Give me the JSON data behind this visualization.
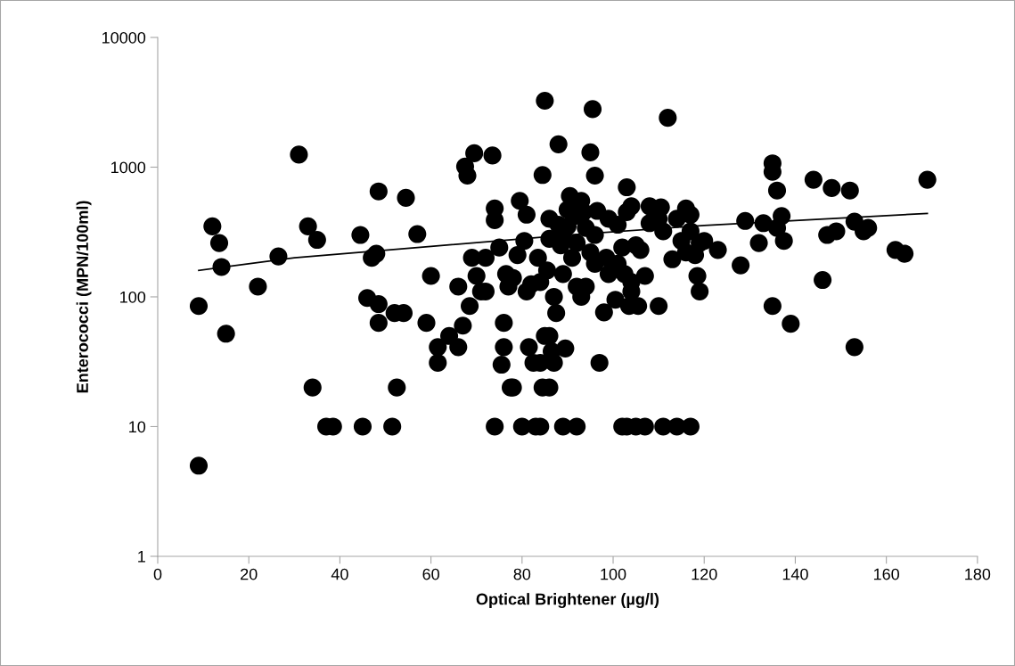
{
  "chart_data": {
    "type": "scatter",
    "xlabel": "Optical Brightener (µg/l)",
    "ylabel": "Enterococci (MPN/100ml)",
    "log": "y",
    "grid": false,
    "marker": "circle",
    "xlim": [
      0,
      180
    ],
    "xticks": [
      0,
      20,
      40,
      60,
      80,
      100,
      120,
      140,
      160,
      180
    ],
    "ylim": [
      1,
      10000
    ],
    "yticks": [
      1,
      10,
      100,
      1000,
      10000
    ],
    "series": [
      {
        "color": "#000000",
        "x": [
          9,
          9,
          12,
          13.5,
          14,
          15,
          22,
          26.5,
          31,
          33,
          34,
          35,
          37,
          38.5,
          44.5,
          45,
          46,
          47,
          48,
          48.5,
          48.5,
          48.5,
          51.5,
          52,
          52.5,
          54,
          54.5,
          57,
          59,
          60,
          61.5,
          61.5,
          64,
          66,
          66,
          67,
          67.5,
          68,
          68.5,
          69,
          69.5,
          70,
          71,
          72,
          72,
          73.5,
          74,
          74,
          74,
          75,
          75.5,
          76,
          76,
          76.5,
          77,
          77.5,
          78,
          78,
          79,
          79.5,
          80,
          80.5,
          81,
          81,
          81.5,
          82,
          82.5,
          83,
          83.5,
          84,
          84,
          84,
          84.5,
          84.5,
          85,
          85,
          85.5,
          86,
          86,
          86,
          86,
          86.5,
          87,
          87,
          87.5,
          88,
          88,
          88.5,
          89,
          89,
          89,
          89.5,
          90,
          90,
          90.5,
          91,
          91.5,
          92,
          92,
          92,
          93,
          93,
          93.5,
          94,
          94,
          95,
          95,
          95.5,
          96,
          96,
          96,
          96.5,
          97,
          98,
          98.5,
          99,
          99,
          100.5,
          101,
          101,
          102,
          102,
          102.5,
          103,
          103,
          103,
          103.5,
          104,
          104,
          104,
          105,
          105,
          105.5,
          106,
          107,
          107,
          108,
          108,
          110,
          110,
          110.5,
          111,
          111,
          112,
          113,
          114,
          114,
          115,
          116,
          116,
          117,
          117,
          117,
          118,
          118.5,
          119,
          119,
          120,
          123,
          128,
          129,
          132,
          133,
          135,
          135,
          135,
          136,
          136,
          137,
          137.5,
          139,
          144,
          146,
          147,
          148,
          149,
          152,
          153,
          153,
          155,
          156,
          162,
          164,
          169
        ],
        "values": [
          5,
          85,
          350,
          260,
          170,
          52,
          120,
          205,
          1250,
          350,
          20,
          275,
          10,
          10,
          300,
          10,
          98,
          200,
          215,
          650,
          88,
          63,
          10,
          75,
          20,
          75,
          580,
          305,
          63,
          145,
          41,
          31,
          50,
          41,
          120,
          60,
          1010,
          860,
          85,
          200,
          1280,
          145,
          110,
          110,
          200,
          1230,
          10,
          480,
          390,
          240,
          30,
          63,
          41,
          150,
          120,
          20,
          20,
          140,
          210,
          550,
          10,
          270,
          430,
          110,
          41,
          125,
          31,
          10,
          200,
          31,
          10,
          130,
          20,
          870,
          3250,
          50,
          160,
          20,
          50,
          280,
          400,
          38,
          31,
          100,
          75,
          360,
          1500,
          250,
          150,
          300,
          10,
          40,
          350,
          470,
          600,
          200,
          420,
          10,
          120,
          260,
          550,
          100,
          450,
          340,
          120,
          220,
          1300,
          2800,
          860,
          180,
          300,
          460,
          31,
          76,
          200,
          150,
          400,
          95,
          180,
          360,
          10,
          240,
          150,
          450,
          700,
          10,
          85,
          130,
          500,
          110,
          10,
          250,
          85,
          230,
          10,
          145,
          370,
          500,
          85,
          400,
          490,
          10,
          320,
          2400,
          195,
          10,
          400,
          270,
          220,
          480,
          10,
          320,
          430,
          210,
          145,
          110,
          260,
          270,
          230,
          175,
          385,
          260,
          370,
          85,
          1070,
          920,
          660,
          340,
          420,
          270,
          62,
          800,
          135,
          300,
          690,
          320,
          660,
          41,
          380,
          320,
          340,
          230,
          215,
          800
        ]
      },
      {
        "type": "line",
        "color": "#000000",
        "marker": "none",
        "x": [
          9,
          30,
          60,
          90,
          120,
          150,
          169
        ],
        "values": [
          160,
          200,
          245,
          300,
          355,
          405,
          440
        ]
      }
    ]
  }
}
